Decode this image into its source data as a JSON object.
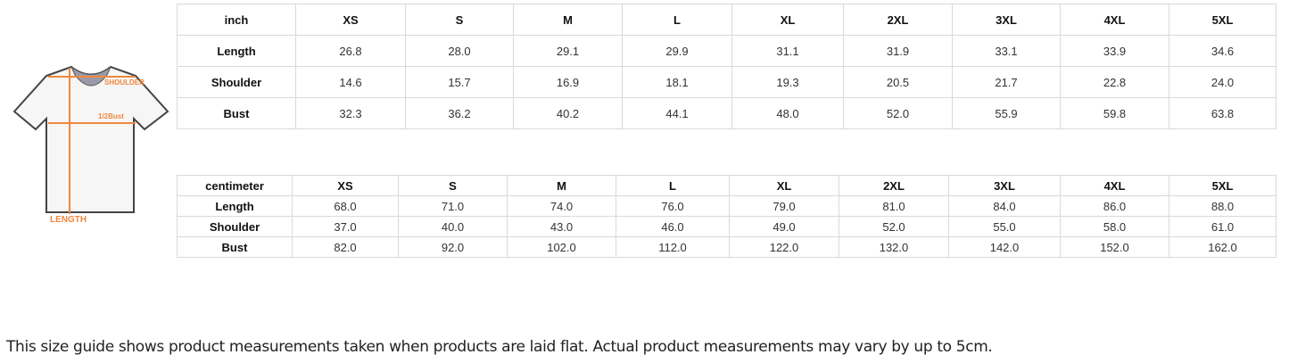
{
  "illustration": {
    "labels": {
      "shoulder": "SHOULDER",
      "bust": "1/2Bust",
      "length": "LENGTH"
    },
    "accent_color": "#f0883e"
  },
  "inch_table": {
    "header": [
      "inch",
      "XS",
      "S",
      "M",
      "L",
      "XL",
      "2XL",
      "3XL",
      "4XL",
      "5XL"
    ],
    "rows": [
      [
        "Length",
        "26.8",
        "28.0",
        "29.1",
        "29.9",
        "31.1",
        "31.9",
        "33.1",
        "33.9",
        "34.6"
      ],
      [
        "Shoulder",
        "14.6",
        "15.7",
        "16.9",
        "18.1",
        "19.3",
        "20.5",
        "21.7",
        "22.8",
        "24.0"
      ],
      [
        "Bust",
        "32.3",
        "36.2",
        "40.2",
        "44.1",
        "48.0",
        "52.0",
        "55.9",
        "59.8",
        "63.8"
      ]
    ]
  },
  "cm_table": {
    "header": [
      "centimeter",
      "XS",
      "S",
      "M",
      "L",
      "XL",
      "2XL",
      "3XL",
      "4XL",
      "5XL"
    ],
    "rows": [
      [
        "Length",
        "68.0",
        "71.0",
        "74.0",
        "76.0",
        "79.0",
        "81.0",
        "84.0",
        "86.0",
        "88.0"
      ],
      [
        "Shoulder",
        "37.0",
        "40.0",
        "43.0",
        "46.0",
        "49.0",
        "52.0",
        "55.0",
        "58.0",
        "61.0"
      ],
      [
        "Bust",
        "82.0",
        "92.0",
        "102.0",
        "112.0",
        "122.0",
        "132.0",
        "142.0",
        "152.0",
        "162.0"
      ]
    ]
  },
  "note": "This size guide shows product measurements taken when products are laid flat. Actual product measurements may vary by up to 5cm."
}
